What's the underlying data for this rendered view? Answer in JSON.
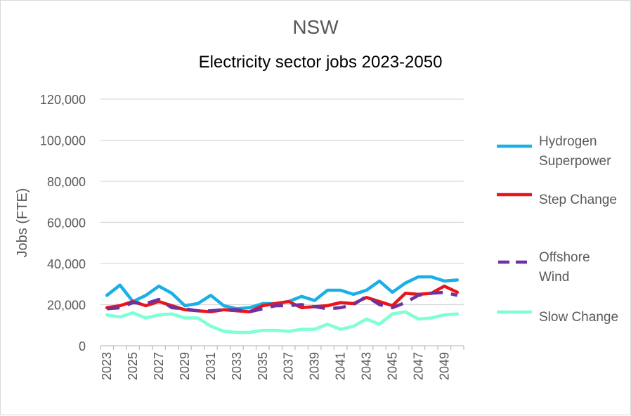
{
  "chart_data": {
    "type": "line",
    "title": "NSW",
    "subtitle": "Electricity sector jobs 2023-2050",
    "xlabel": "",
    "ylabel": "Jobs (FTE)",
    "ylim": [
      0,
      120000
    ],
    "yticks": [
      0,
      20000,
      40000,
      60000,
      80000,
      100000,
      120000
    ],
    "ytick_labels": [
      "0",
      "20,000",
      "40,000",
      "60,000",
      "80,000",
      "100,000",
      "120,000"
    ],
    "xtick_labels": [
      "2023",
      "2025",
      "2027",
      "2029",
      "2031",
      "2033",
      "2035",
      "2037",
      "2039",
      "2041",
      "2043",
      "2045",
      "2047",
      "2049"
    ],
    "grid": true,
    "legend_position": "right",
    "x": [
      2023,
      2024,
      2025,
      2026,
      2027,
      2028,
      2029,
      2030,
      2031,
      2032,
      2033,
      2034,
      2035,
      2036,
      2037,
      2038,
      2039,
      2040,
      2041,
      2042,
      2043,
      2044,
      2045,
      2046,
      2047,
      2048,
      2049,
      2050
    ],
    "series": [
      {
        "name": "Hydrogen Superpower",
        "name_lines": [
          "Hydrogen",
          "Superpower"
        ],
        "color": "#1AAFE6",
        "dash": "solid",
        "values": [
          24500,
          29500,
          21500,
          24500,
          29000,
          25500,
          19500,
          20500,
          24500,
          19500,
          18000,
          18500,
          20500,
          20500,
          21500,
          24000,
          22000,
          27000,
          27000,
          25000,
          27000,
          31500,
          26000,
          30500,
          33500,
          33500,
          31500,
          32000
        ]
      },
      {
        "name": "Step Change",
        "name_lines": [
          "Step Change"
        ],
        "color": "#E8161A",
        "dash": "solid",
        "values": [
          18500,
          19500,
          21500,
          19500,
          21500,
          19500,
          17500,
          17000,
          16500,
          17500,
          17000,
          16500,
          19500,
          20500,
          21500,
          18500,
          19000,
          19500,
          21000,
          20500,
          23500,
          21500,
          19500,
          25500,
          25000,
          25500,
          29000,
          26000
        ]
      },
      {
        "name": "Offshore Wind",
        "name_lines": [
          "Offshore",
          "Wind"
        ],
        "color": "#7030A0",
        "dash": "dashed",
        "values": [
          18000,
          18500,
          21000,
          20500,
          22500,
          18500,
          18000,
          17000,
          17000,
          17500,
          17500,
          16500,
          18000,
          19500,
          19500,
          20000,
          19000,
          18000,
          18500,
          20000,
          24000,
          20000,
          18500,
          21000,
          24500,
          25500,
          26000,
          24500
        ]
      },
      {
        "name": "Slow Change",
        "name_lines": [
          "Slow Change"
        ],
        "color": "#7FFFD4",
        "dash": "solid",
        "values": [
          15000,
          14000,
          16000,
          13500,
          15000,
          15500,
          13500,
          13500,
          9500,
          7000,
          6500,
          6500,
          7500,
          7500,
          7000,
          8000,
          8000,
          10500,
          8000,
          9500,
          13000,
          10500,
          15500,
          16500,
          13000,
          13500,
          15000,
          15500
        ]
      }
    ]
  }
}
